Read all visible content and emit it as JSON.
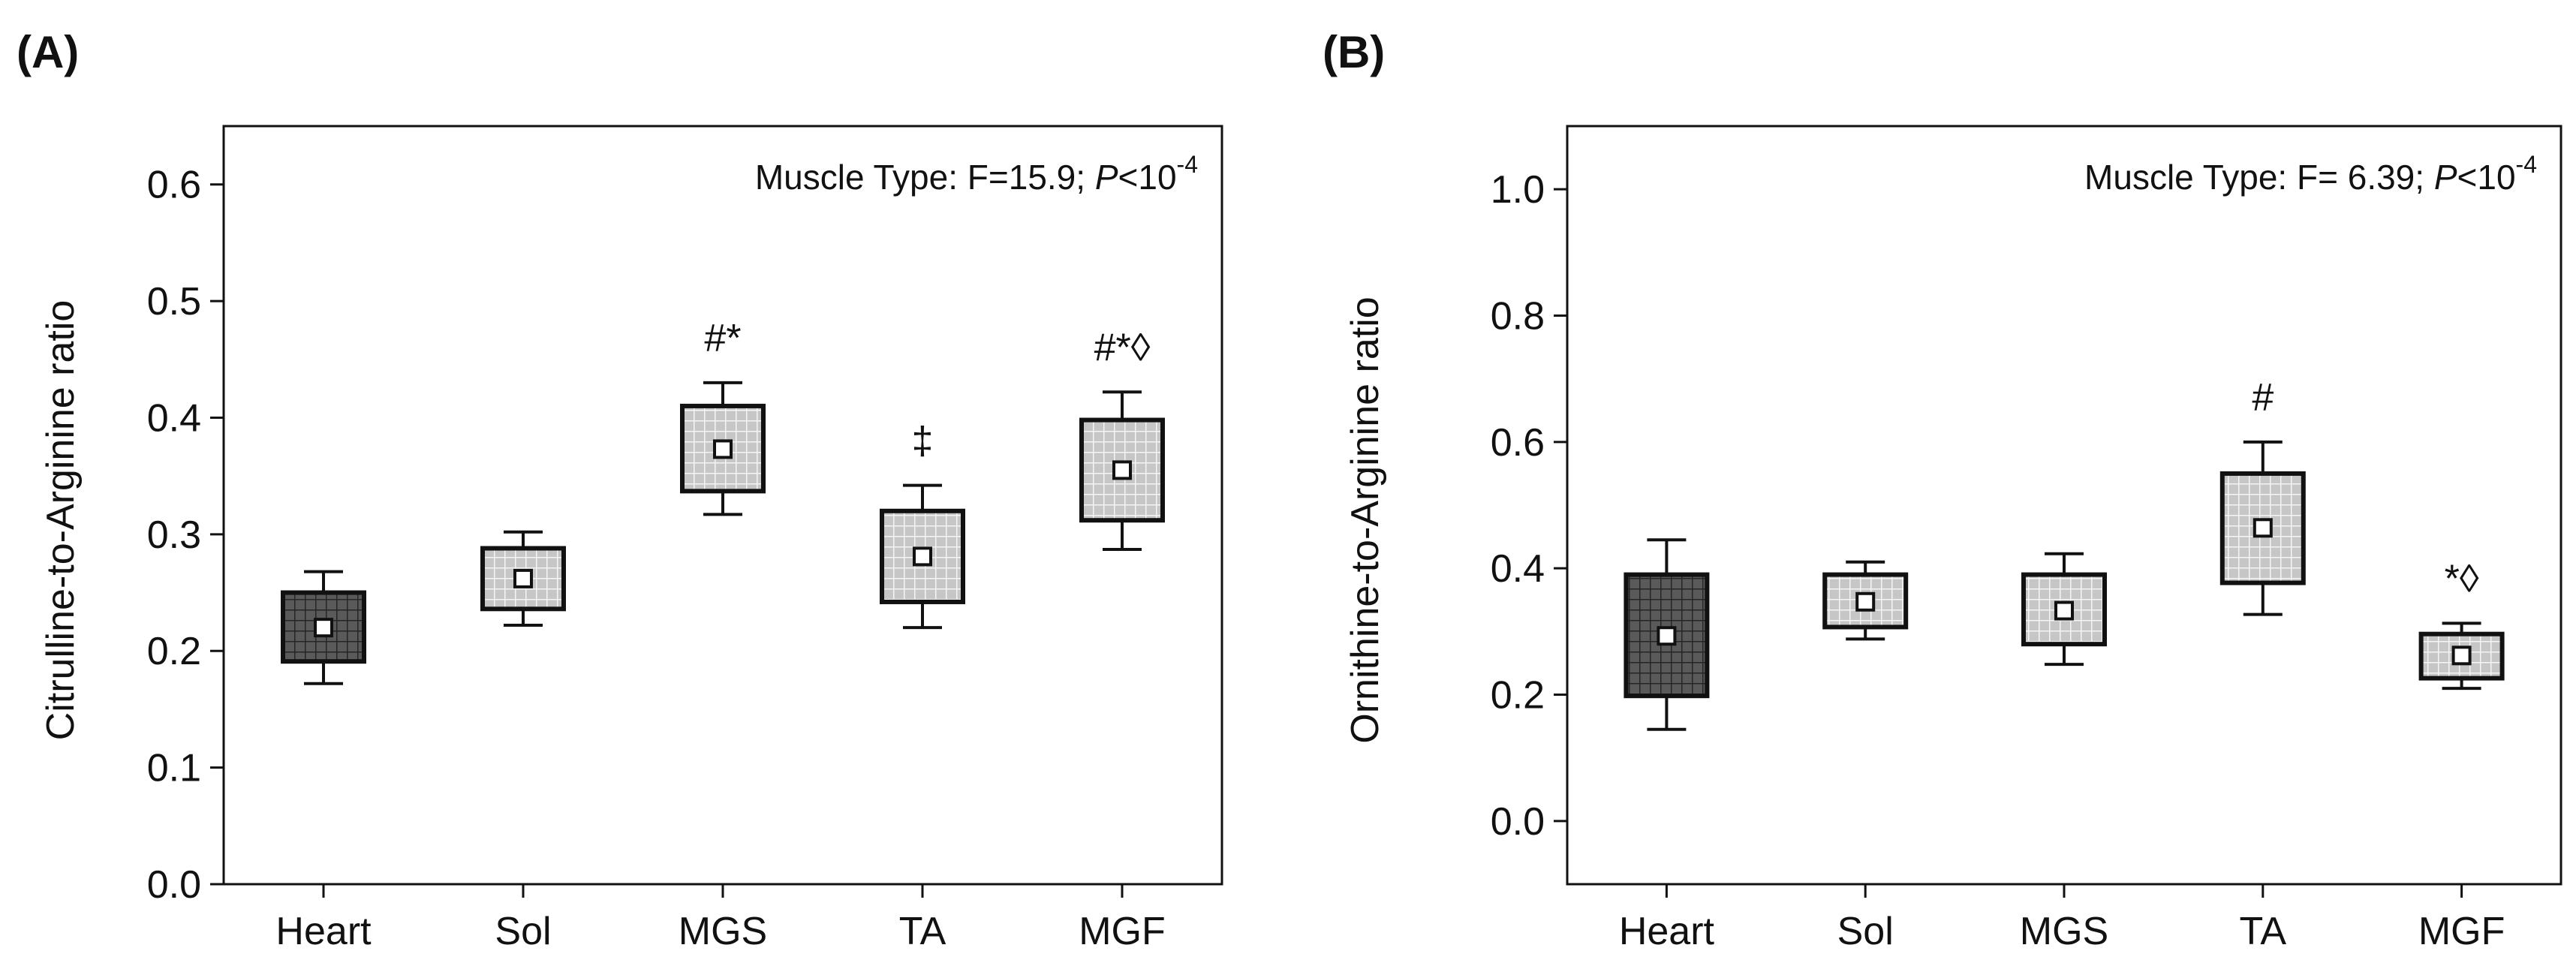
{
  "chart_data": [
    {
      "panel": "(A)",
      "type": "box",
      "title": "",
      "xlabel": "",
      "ylabel": "Citrulline-to-Arginine ratio",
      "ylim": [
        0.0,
        0.65
      ],
      "yticks": [
        "0.0",
        "0.1",
        "0.2",
        "0.3",
        "0.4",
        "0.5",
        "0.6"
      ],
      "ytick_values": [
        0.0,
        0.1,
        0.2,
        0.3,
        0.4,
        0.5,
        0.6
      ],
      "annotation": {
        "prefix": "Muscle Type: F=15.9; ",
        "p": "P",
        "lt": "<10",
        "exp": "-4"
      },
      "categories": [
        "Heart",
        "Sol",
        "MGS",
        "TA",
        "MGF"
      ],
      "mean": [
        0.22,
        0.262,
        0.373,
        0.281,
        0.355
      ],
      "box_low": [
        0.191,
        0.236,
        0.337,
        0.242,
        0.312
      ],
      "box_high": [
        0.25,
        0.288,
        0.41,
        0.32,
        0.398
      ],
      "whisk_low": [
        0.172,
        0.222,
        0.317,
        0.22,
        0.287
      ],
      "whisk_high": [
        0.268,
        0.302,
        0.43,
        0.342,
        0.422
      ],
      "significance": [
        "",
        "",
        "#*",
        "‡",
        "#*◊"
      ],
      "highlight_index": 0
    },
    {
      "panel": "(B)",
      "type": "box",
      "title": "",
      "xlabel": "",
      "ylabel": "Ornithine-to-Arginine ratio",
      "ylim": [
        -0.1,
        1.1
      ],
      "yticks": [
        "0.0",
        "0.2",
        "0.4",
        "0.6",
        "0.8",
        "1.0"
      ],
      "ytick_values": [
        0.0,
        0.2,
        0.4,
        0.6,
        0.8,
        1.0
      ],
      "annotation": {
        "prefix": "Muscle Type: F= 6.39; ",
        "p": "P",
        "lt": "<10",
        "exp": "-4"
      },
      "categories": [
        "Heart",
        "Sol",
        "MGS",
        "TA",
        "MGF"
      ],
      "mean": [
        0.293,
        0.347,
        0.333,
        0.464,
        0.262
      ],
      "box_low": [
        0.198,
        0.307,
        0.28,
        0.377,
        0.226
      ],
      "box_high": [
        0.39,
        0.39,
        0.39,
        0.55,
        0.296
      ],
      "whisk_low": [
        0.145,
        0.288,
        0.248,
        0.327,
        0.21
      ],
      "whisk_high": [
        0.445,
        0.41,
        0.423,
        0.6,
        0.313
      ],
      "significance": [
        "",
        "",
        "",
        "#",
        "*◊"
      ],
      "highlight_index": 0
    }
  ],
  "colors": {
    "dark_box": "#5a5a5a",
    "light_box": "#c8c8c8",
    "axis": "#111111",
    "grid_line_dark": "#2a2a2a",
    "grid_line_light": "#f2f2f2"
  }
}
